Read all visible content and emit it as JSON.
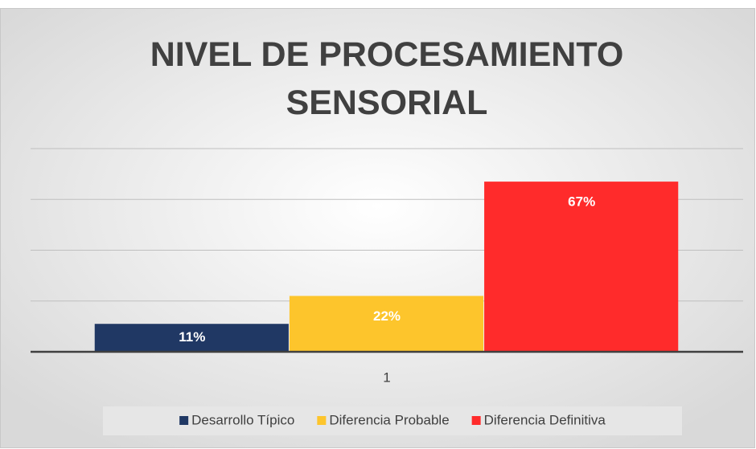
{
  "chart_data": {
    "type": "bar",
    "title": "NIVEL DE PROCESAMIENTO SENSORIAL",
    "categories": [
      "1"
    ],
    "series": [
      {
        "name": "Desarrollo Típico",
        "color": "#203864",
        "values": [
          11
        ],
        "value_labels": [
          "11%"
        ]
      },
      {
        "name": "Diferencia Probable",
        "color": "#fdc52c",
        "values": [
          22
        ],
        "value_labels": [
          "22%"
        ]
      },
      {
        "name": "Diferencia Definitiva",
        "color": "#ff2b2b",
        "values": [
          67
        ],
        "value_labels": [
          "67%"
        ]
      }
    ],
    "ylim": [
      0,
      80
    ],
    "yticks": [
      0,
      20,
      40,
      60,
      80
    ],
    "grid": true,
    "legend": "bottom"
  }
}
